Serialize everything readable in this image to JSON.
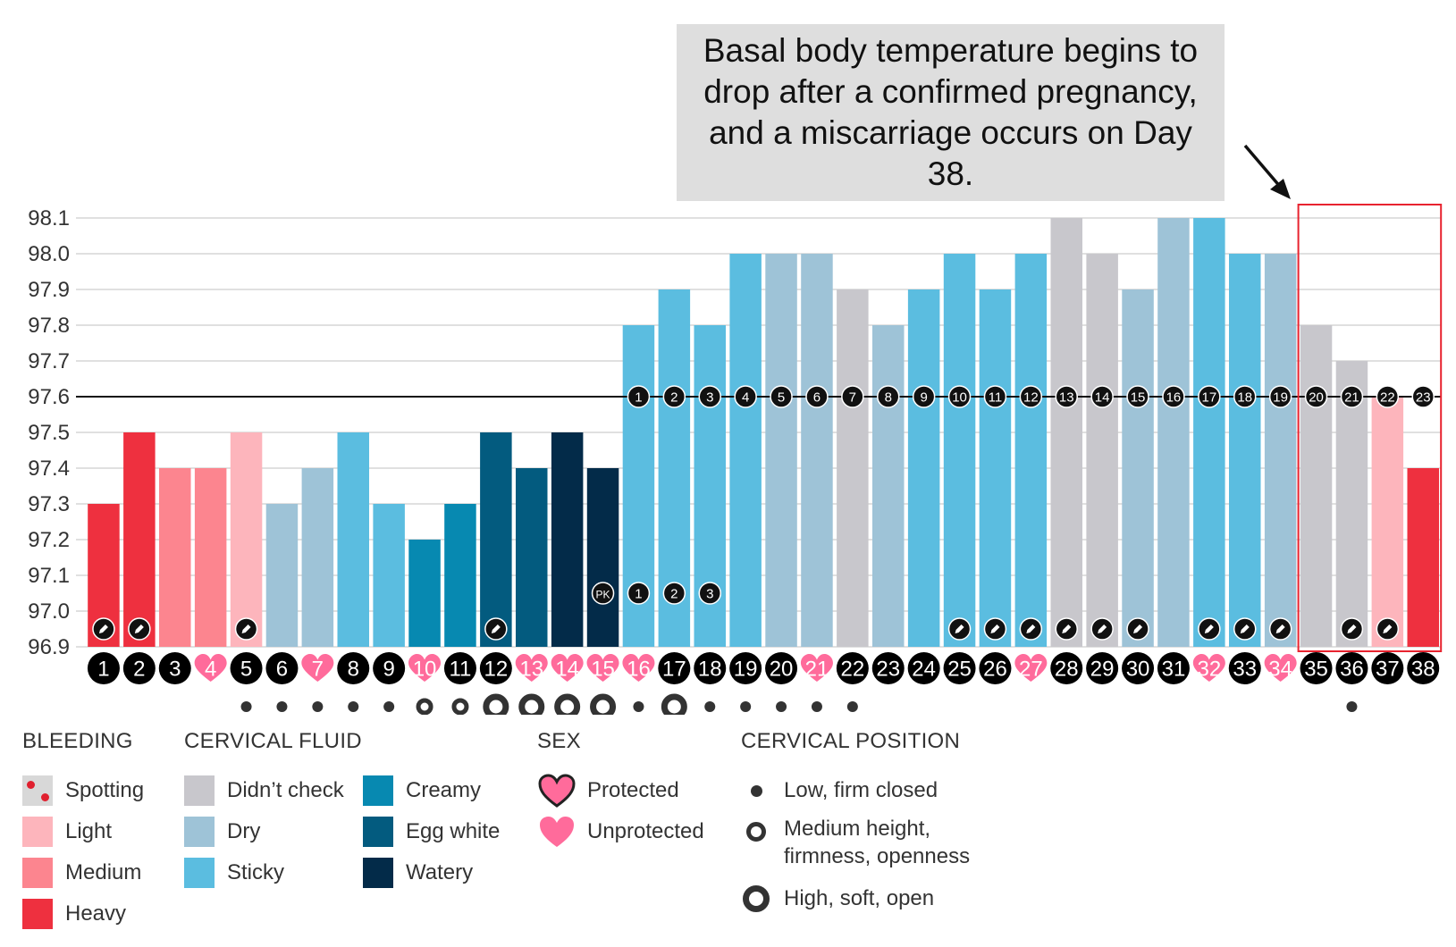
{
  "annotation": "Basal body temperature begins to drop after a confirmed pregnancy, and a miscarriage occurs on Day 38.",
  "colors": {
    "spotting": "#d8d8d8",
    "light": "#fdb5bc",
    "medium": "#fc858f",
    "heavy": "#ee303f",
    "didnt_check": "#c8c7cc",
    "dry": "#9ec3d7",
    "sticky": "#5bbde0",
    "creamy": "#0789b1",
    "egg_white": "#035b7f",
    "watery": "#032b49",
    "sex": "#ff6b9b",
    "highlight": "#e8232f"
  },
  "chart_data": {
    "type": "bar",
    "ylim": [
      96.9,
      98.1
    ],
    "yticks": [
      "98.1",
      "98.0",
      "97.9",
      "97.8",
      "97.7",
      "97.6",
      "97.5",
      "97.4",
      "97.3",
      "97.2",
      "97.1",
      "97.0",
      "96.9"
    ],
    "coverline": 97.6,
    "days": [
      "1",
      "2",
      "3",
      "4",
      "5",
      "6",
      "7",
      "8",
      "9",
      "10",
      "11",
      "12",
      "13",
      "14",
      "15",
      "16",
      "17",
      "18",
      "19",
      "20",
      "21",
      "22",
      "23",
      "24",
      "25",
      "26",
      "27",
      "28",
      "29",
      "30",
      "31",
      "32",
      "33",
      "34",
      "35",
      "36",
      "37",
      "38"
    ],
    "values": [
      97.3,
      97.5,
      97.4,
      97.4,
      97.5,
      97.3,
      97.4,
      97.5,
      97.3,
      97.2,
      97.3,
      97.5,
      97.4,
      97.5,
      97.4,
      97.8,
      97.9,
      97.8,
      98.0,
      98.0,
      98.0,
      97.9,
      97.8,
      97.9,
      98.0,
      97.9,
      98.0,
      98.1,
      98.0,
      97.9,
      98.1,
      98.1,
      98.0,
      98.0,
      97.8,
      97.7,
      97.6,
      97.4
    ],
    "categories": [
      "heavy",
      "heavy",
      "medium",
      "medium",
      "light",
      "dry",
      "dry",
      "sticky",
      "sticky",
      "creamy",
      "creamy",
      "egg_white",
      "egg_white",
      "watery",
      "watery",
      "sticky",
      "sticky",
      "sticky",
      "sticky",
      "dry",
      "dry",
      "didnt_check",
      "dry",
      "sticky",
      "sticky",
      "sticky",
      "sticky",
      "didnt_check",
      "didnt_check",
      "dry",
      "dry",
      "sticky",
      "sticky",
      "dry",
      "didnt_check",
      "didnt_check",
      "light",
      "heavy"
    ],
    "sex_days": [
      4,
      7,
      10,
      13,
      14,
      15,
      16,
      21,
      27,
      32,
      34
    ],
    "edit_icon_days": [
      1,
      2,
      5,
      12,
      25,
      26,
      27,
      28,
      29,
      30,
      32,
      33,
      34,
      36,
      37
    ],
    "post_ovulation_counts": [
      {
        "day": 16,
        "label": "1"
      },
      {
        "day": 17,
        "label": "2"
      },
      {
        "day": 18,
        "label": "3"
      },
      {
        "day": 19,
        "label": "4"
      },
      {
        "day": 20,
        "label": "5"
      },
      {
        "day": 21,
        "label": "6"
      },
      {
        "day": 22,
        "label": "7"
      },
      {
        "day": 23,
        "label": "8"
      },
      {
        "day": 24,
        "label": "9"
      },
      {
        "day": 25,
        "label": "10"
      },
      {
        "day": 26,
        "label": "11"
      },
      {
        "day": 27,
        "label": "12"
      },
      {
        "day": 28,
        "label": "13"
      },
      {
        "day": 29,
        "label": "14"
      },
      {
        "day": 30,
        "label": "15"
      },
      {
        "day": 31,
        "label": "16"
      },
      {
        "day": 32,
        "label": "17"
      },
      {
        "day": 33,
        "label": "18"
      },
      {
        "day": 34,
        "label": "19"
      },
      {
        "day": 35,
        "label": "20"
      },
      {
        "day": 36,
        "label": "21"
      },
      {
        "day": 37,
        "label": "22"
      },
      {
        "day": 38,
        "label": "23"
      }
    ],
    "peak_markers": [
      {
        "day": 15,
        "label": "PK"
      },
      {
        "day": 16,
        "label": "1"
      },
      {
        "day": 17,
        "label": "2"
      },
      {
        "day": 18,
        "label": "3"
      }
    ],
    "cervical_position": [
      {
        "day": 5,
        "pos": "low"
      },
      {
        "day": 6,
        "pos": "low"
      },
      {
        "day": 7,
        "pos": "low"
      },
      {
        "day": 8,
        "pos": "low"
      },
      {
        "day": 9,
        "pos": "low"
      },
      {
        "day": 10,
        "pos": "medium"
      },
      {
        "day": 11,
        "pos": "medium"
      },
      {
        "day": 12,
        "pos": "high"
      },
      {
        "day": 13,
        "pos": "high"
      },
      {
        "day": 14,
        "pos": "high"
      },
      {
        "day": 15,
        "pos": "high"
      },
      {
        "day": 16,
        "pos": "low"
      },
      {
        "day": 17,
        "pos": "high"
      },
      {
        "day": 18,
        "pos": "low"
      },
      {
        "day": 19,
        "pos": "low"
      },
      {
        "day": 20,
        "pos": "low"
      },
      {
        "day": 21,
        "pos": "low"
      },
      {
        "day": 22,
        "pos": "low"
      },
      {
        "day": 36,
        "pos": "low"
      }
    ],
    "highlight_days": [
      35,
      38
    ]
  },
  "legend": {
    "bleeding": {
      "title": "BLEEDING",
      "items": [
        "Spotting",
        "Light",
        "Medium",
        "Heavy"
      ]
    },
    "cervical_fluid": {
      "title": "CERVICAL FLUID",
      "items": [
        "Didn’t check",
        "Dry",
        "Sticky",
        "Creamy",
        "Egg white",
        "Watery"
      ]
    },
    "sex": {
      "title": "SEX",
      "items": [
        "Protected",
        "Unprotected"
      ]
    },
    "cervical_position": {
      "title": "CERVICAL POSITION",
      "items": [
        "Low, firm closed",
        "Medium height, firmness, openness",
        "High, soft, open"
      ]
    }
  }
}
